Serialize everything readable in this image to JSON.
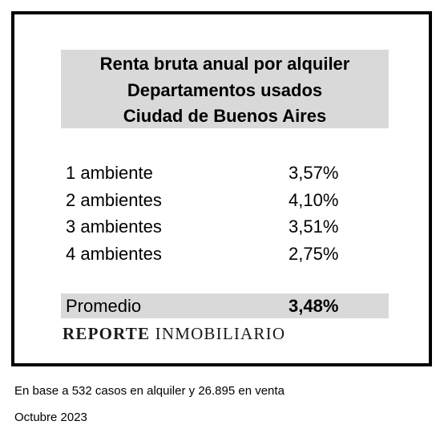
{
  "title": {
    "lines": [
      "Renta bruta anual por alquiler",
      "Departamentos usados",
      "Ciudad de Buenos Aires"
    ]
  },
  "rows": [
    {
      "label": "1 ambiente",
      "value": "3,57%"
    },
    {
      "label": "2 ambientes",
      "value": "4,10%"
    },
    {
      "label": "3 ambientes",
      "value": "3,51%"
    },
    {
      "label": "4 ambientes",
      "value": "2,75%"
    }
  ],
  "average": {
    "label": "Promedio",
    "value": "3,48%"
  },
  "brand": {
    "bold_part": "REPORTE",
    "regular_part": "INMOBILIARIO"
  },
  "notes": {
    "base": "En base a 532 casos en alquiler y 26.895 en venta",
    "date": "Octubre 2023"
  },
  "colors": {
    "highlight_background": "#d9d9d9",
    "border": "#000000"
  }
}
